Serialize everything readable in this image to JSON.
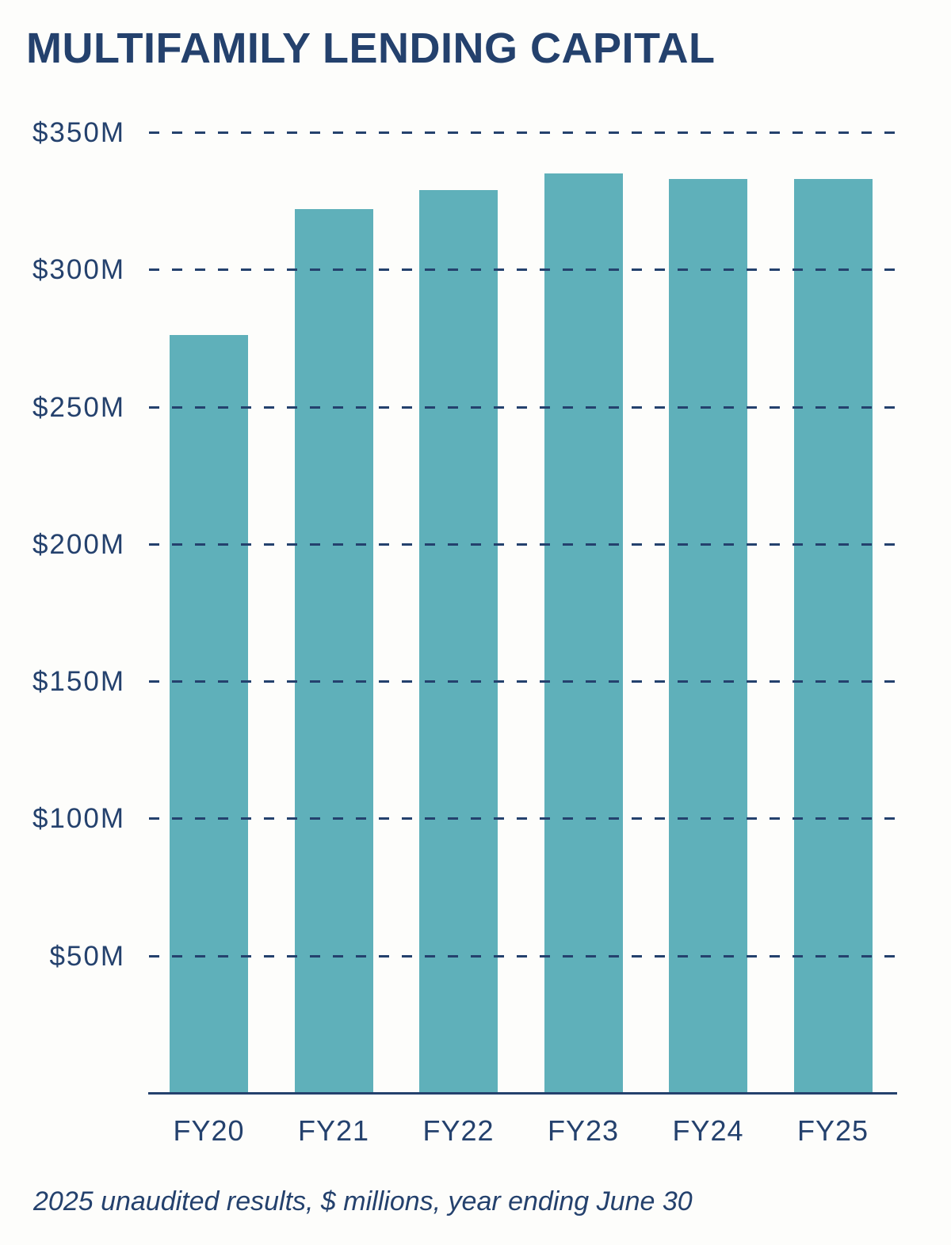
{
  "chart_data": {
    "type": "bar",
    "title": "MULTIFAMILY LENDING CAPITAL",
    "categories": [
      "FY20",
      "FY21",
      "FY22",
      "FY23",
      "FY24",
      "FY25"
    ],
    "values": [
      276,
      322,
      329,
      335,
      333,
      333
    ],
    "value_unit": "$ millions",
    "ylim": [
      0,
      350
    ],
    "yticks": [
      {
        "value": 350,
        "label": "$350M"
      },
      {
        "value": 300,
        "label": "$300M"
      },
      {
        "value": 250,
        "label": "$250M"
      },
      {
        "value": 200,
        "label": "$200M"
      },
      {
        "value": 150,
        "label": "$150M"
      },
      {
        "value": 100,
        "label": "$100M"
      },
      {
        "value": 50,
        "label": "$50M"
      }
    ],
    "grid": {
      "orientation": "horizontal",
      "style": "dashed"
    },
    "legend": "none",
    "footnote": "2025 unaudited results, $ millions, year ending June 30",
    "colors": {
      "bar": "#5FB0BA",
      "navy": "#24416D",
      "background": "#FDFDFB"
    }
  }
}
